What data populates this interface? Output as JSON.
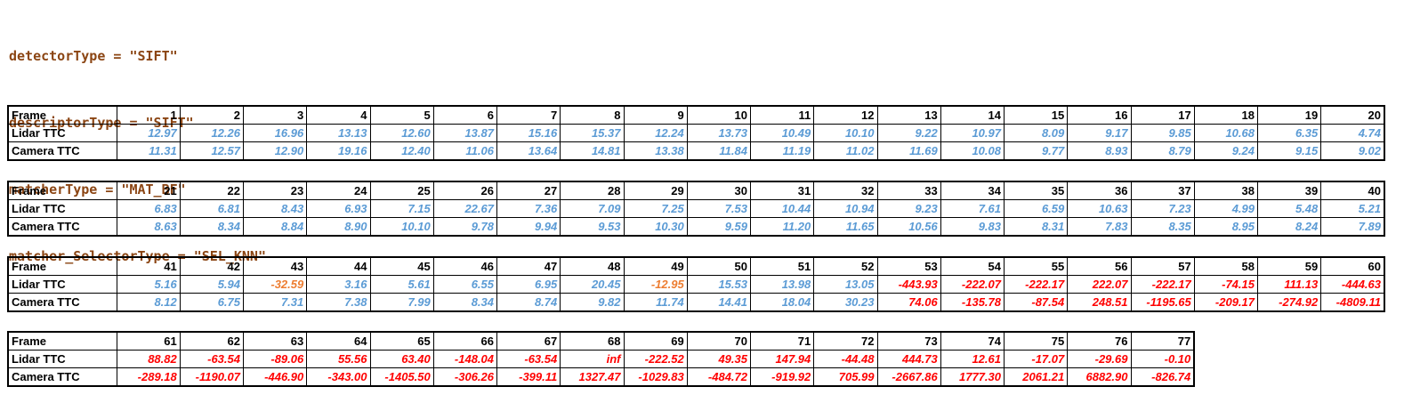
{
  "config": {
    "lines": [
      "detectorType = \"SIFT\"",
      "descriptorType = \"SIFT\"",
      "matcherType = \"MAT_BF\"",
      "matcher_SelectorType = \"SEL_KNN\""
    ]
  },
  "colors": {
    "good": "#5B9BD5",
    "warning": "#ED7D31",
    "bad": "#FF0000"
  },
  "row_labels": {
    "frame": "Frame",
    "lidar": "Lidar TTC",
    "camera": "Camera TTC"
  },
  "tables": [
    {
      "frames": [
        "1",
        "2",
        "3",
        "4",
        "5",
        "6",
        "7",
        "8",
        "9",
        "10",
        "11",
        "12",
        "13",
        "14",
        "15",
        "16",
        "17",
        "18",
        "19",
        "20"
      ],
      "lidar": [
        "12.97",
        "12.26",
        "16.96",
        "13.13",
        "12.60",
        "13.87",
        "15.16",
        "15.37",
        "12.24",
        "13.73",
        "10.49",
        "10.10",
        "9.22",
        "10.97",
        "8.09",
        "9.17",
        "9.85",
        "10.68",
        "6.35",
        "4.74"
      ],
      "lidar_status": [
        "g",
        "g",
        "g",
        "g",
        "g",
        "g",
        "g",
        "g",
        "g",
        "g",
        "g",
        "g",
        "g",
        "g",
        "g",
        "g",
        "g",
        "g",
        "g",
        "g"
      ],
      "camera": [
        "11.31",
        "12.57",
        "12.90",
        "19.16",
        "12.40",
        "11.06",
        "13.64",
        "14.81",
        "13.38",
        "11.84",
        "11.19",
        "11.02",
        "11.69",
        "10.08",
        "9.77",
        "8.93",
        "8.79",
        "9.24",
        "9.15",
        "9.02"
      ],
      "camera_status": [
        "g",
        "g",
        "g",
        "g",
        "g",
        "g",
        "g",
        "g",
        "g",
        "g",
        "g",
        "g",
        "g",
        "g",
        "g",
        "g",
        "g",
        "g",
        "g",
        "g"
      ]
    },
    {
      "frames": [
        "21",
        "22",
        "23",
        "24",
        "25",
        "26",
        "27",
        "28",
        "29",
        "30",
        "31",
        "32",
        "33",
        "34",
        "35",
        "36",
        "37",
        "38",
        "39",
        "40"
      ],
      "lidar": [
        "6.83",
        "6.81",
        "8.43",
        "6.93",
        "7.15",
        "22.67",
        "7.36",
        "7.09",
        "7.25",
        "7.53",
        "10.44",
        "10.94",
        "9.23",
        "7.61",
        "6.59",
        "10.63",
        "7.23",
        "4.99",
        "5.48",
        "5.21"
      ],
      "lidar_status": [
        "g",
        "g",
        "g",
        "g",
        "g",
        "g",
        "g",
        "g",
        "g",
        "g",
        "g",
        "g",
        "g",
        "g",
        "g",
        "g",
        "g",
        "g",
        "g",
        "g"
      ],
      "camera": [
        "8.63",
        "8.34",
        "8.84",
        "8.90",
        "10.10",
        "9.78",
        "9.94",
        "9.53",
        "10.30",
        "9.59",
        "11.20",
        "11.65",
        "10.56",
        "9.83",
        "8.31",
        "7.83",
        "8.35",
        "8.95",
        "8.24",
        "7.89"
      ],
      "camera_status": [
        "g",
        "g",
        "g",
        "g",
        "g",
        "g",
        "g",
        "g",
        "g",
        "g",
        "g",
        "g",
        "g",
        "g",
        "g",
        "g",
        "g",
        "g",
        "g",
        "g"
      ]
    },
    {
      "frames": [
        "41",
        "42",
        "43",
        "44",
        "45",
        "46",
        "47",
        "48",
        "49",
        "50",
        "51",
        "52",
        "53",
        "54",
        "55",
        "56",
        "57",
        "58",
        "59",
        "60"
      ],
      "lidar": [
        "5.16",
        "5.94",
        "-32.59",
        "3.16",
        "5.61",
        "6.55",
        "6.95",
        "20.45",
        "-12.95",
        "15.53",
        "13.98",
        "13.05",
        "-443.93",
        "-222.07",
        "-222.17",
        "222.07",
        "-222.17",
        "-74.15",
        "111.13",
        "-444.63"
      ],
      "lidar_status": [
        "g",
        "g",
        "w",
        "g",
        "g",
        "g",
        "g",
        "g",
        "w",
        "g",
        "g",
        "g",
        "b",
        "b",
        "b",
        "b",
        "b",
        "b",
        "b",
        "b"
      ],
      "camera": [
        "8.12",
        "6.75",
        "7.31",
        "7.38",
        "7.99",
        "8.34",
        "8.74",
        "9.82",
        "11.74",
        "14.41",
        "18.04",
        "30.23",
        "74.06",
        "-135.78",
        "-87.54",
        "248.51",
        "-1195.65",
        "-209.17",
        "-274.92",
        "-4809.11"
      ],
      "camera_status": [
        "g",
        "g",
        "g",
        "g",
        "g",
        "g",
        "g",
        "g",
        "g",
        "g",
        "g",
        "g",
        "b",
        "b",
        "b",
        "b",
        "b",
        "b",
        "b",
        "b"
      ]
    },
    {
      "frames": [
        "61",
        "62",
        "63",
        "64",
        "65",
        "66",
        "67",
        "68",
        "69",
        "70",
        "71",
        "72",
        "73",
        "74",
        "75",
        "76",
        "77"
      ],
      "lidar": [
        "88.82",
        "-63.54",
        "-89.06",
        "55.56",
        "63.40",
        "-148.04",
        "-63.54",
        "inf",
        "-222.52",
        "49.35",
        "147.94",
        "-44.48",
        "444.73",
        "12.61",
        "-17.07",
        "-29.69",
        "-0.10"
      ],
      "lidar_status": [
        "b",
        "b",
        "b",
        "b",
        "b",
        "b",
        "b",
        "b",
        "b",
        "b",
        "b",
        "b",
        "b",
        "b",
        "b",
        "b",
        "b"
      ],
      "camera": [
        "-289.18",
        "-1190.07",
        "-446.90",
        "-343.00",
        "-1405.50",
        "-306.26",
        "-399.11",
        "1327.47",
        "-1029.83",
        "-484.72",
        "-919.92",
        "705.99",
        "-2667.86",
        "1777.30",
        "2061.21",
        "6882.90",
        "-826.74"
      ],
      "camera_status": [
        "b",
        "b",
        "b",
        "b",
        "b",
        "b",
        "b",
        "b",
        "b",
        "b",
        "b",
        "b",
        "b",
        "b",
        "b",
        "b",
        "b"
      ]
    }
  ]
}
